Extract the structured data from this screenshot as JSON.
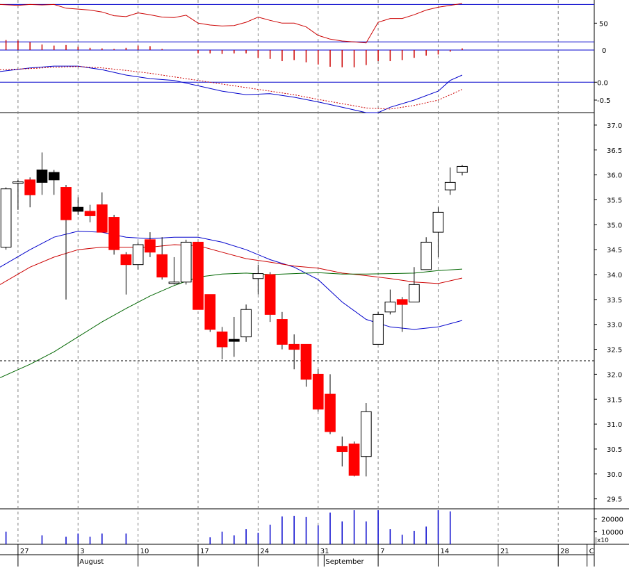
{
  "chart_data": {
    "type": "candlestick",
    "colors": {
      "up_body": "#ffffff",
      "down_body": "#ff0000",
      "doji_body": "#000000",
      "wick": "#000000",
      "ma_fast": "#0000cc",
      "ma_mid": "#cc0000",
      "ma_slow": "#006600",
      "rsi_line": "#cc0000",
      "macd_line": "#0000cc",
      "signal_line": "#cc0000",
      "hist_up": "#cc0000",
      "hist_down": "#cc0000",
      "volume": "#0000cc",
      "band_line": "#0000cc",
      "grid": "#808080"
    },
    "x_axis": {
      "day_labels": [
        {
          "label": "27",
          "day": 1
        },
        {
          "label": "3",
          "day": 6
        },
        {
          "label": "10",
          "day": 11
        },
        {
          "label": "17",
          "day": 16
        },
        {
          "label": "24",
          "day": 21
        },
        {
          "label": "31",
          "day": 26
        },
        {
          "label": "7",
          "day": 31
        },
        {
          "label": "14",
          "day": 36
        },
        {
          "label": "21",
          "day": 41
        },
        {
          "label": "28",
          "day": 46
        },
        {
          "label": "C",
          "day": 48.4
        }
      ],
      "month_labels": [
        {
          "label": "August",
          "day": 6
        },
        {
          "label": "September",
          "day": 26.5
        }
      ],
      "day_range": [
        -0.5,
        49
      ]
    },
    "price_panel": {
      "ylim": [
        29.3,
        37.25
      ],
      "ticks": [
        29.5,
        30.0,
        30.5,
        31.0,
        31.5,
        32.0,
        32.5,
        33.0,
        33.5,
        34.0,
        34.5,
        35.0,
        35.5,
        36.0,
        36.5,
        37.0
      ],
      "tick_labels": [
        "29.5",
        "30.0",
        "30.5",
        "31.0",
        "31.5",
        "32.0",
        "32.5",
        "33.0",
        "33.5",
        "34.0",
        "34.5",
        "35.0",
        "35.5",
        "36.0",
        "36.5",
        "37.0"
      ],
      "reference_level": 32.27,
      "candles": [
        {
          "day": 0,
          "o": 34.55,
          "h": 35.75,
          "l": 34.5,
          "c": 35.72
        },
        {
          "day": 1,
          "o": 35.85,
          "h": 35.9,
          "l": 35.3,
          "c": 35.86
        },
        {
          "day": 2,
          "o": 35.9,
          "h": 35.95,
          "l": 35.35,
          "c": 35.6
        },
        {
          "day": 3,
          "o": 35.85,
          "h": 36.45,
          "l": 35.6,
          "c": 36.1
        },
        {
          "day": 4,
          "o": 36.05,
          "h": 36.1,
          "l": 35.6,
          "c": 35.9
        },
        {
          "day": 5,
          "o": 35.75,
          "h": 35.8,
          "l": 33.5,
          "c": 35.1
        },
        {
          "day": 6,
          "o": 35.35,
          "h": 35.55,
          "l": 35.2,
          "c": 35.27
        },
        {
          "day": 7,
          "o": 35.27,
          "h": 35.4,
          "l": 35.05,
          "c": 35.18
        },
        {
          "day": 8,
          "o": 35.4,
          "h": 35.65,
          "l": 34.85,
          "c": 34.85
        },
        {
          "day": 9,
          "o": 35.15,
          "h": 35.2,
          "l": 34.4,
          "c": 34.5
        },
        {
          "day": 10,
          "o": 34.4,
          "h": 34.45,
          "l": 33.6,
          "c": 34.2
        },
        {
          "day": 11,
          "o": 34.2,
          "h": 34.65,
          "l": 34.1,
          "c": 34.6
        },
        {
          "day": 12,
          "o": 34.7,
          "h": 34.85,
          "l": 34.35,
          "c": 34.45
        },
        {
          "day": 13,
          "o": 34.4,
          "h": 34.75,
          "l": 33.9,
          "c": 33.95
        },
        {
          "day": 14,
          "o": 33.85,
          "h": 34.35,
          "l": 33.8,
          "c": 33.85
        },
        {
          "day": 15,
          "o": 33.85,
          "h": 34.7,
          "l": 33.8,
          "c": 34.65
        },
        {
          "day": 16,
          "o": 34.65,
          "h": 34.65,
          "l": 33.3,
          "c": 33.3
        },
        {
          "day": 17,
          "o": 33.6,
          "h": 33.6,
          "l": 32.85,
          "c": 32.9
        },
        {
          "day": 18,
          "o": 32.85,
          "h": 32.95,
          "l": 32.3,
          "c": 32.55
        },
        {
          "day": 19,
          "o": 32.7,
          "h": 33.15,
          "l": 32.35,
          "c": 32.66
        },
        {
          "day": 20,
          "o": 32.75,
          "h": 33.4,
          "l": 32.65,
          "c": 33.3
        },
        {
          "day": 21,
          "o": 33.92,
          "h": 34.2,
          "l": 33.6,
          "c": 34.02
        },
        {
          "day": 22,
          "o": 34.0,
          "h": 34.05,
          "l": 33.05,
          "c": 33.2
        },
        {
          "day": 23,
          "o": 33.1,
          "h": 33.25,
          "l": 32.5,
          "c": 32.6
        },
        {
          "day": 24,
          "o": 32.6,
          "h": 32.8,
          "l": 32.1,
          "c": 32.5
        },
        {
          "day": 25,
          "o": 32.6,
          "h": 32.6,
          "l": 31.75,
          "c": 31.9
        },
        {
          "day": 26,
          "o": 32.0,
          "h": 32.1,
          "l": 31.25,
          "c": 31.3
        },
        {
          "day": 27,
          "o": 31.6,
          "h": 32.0,
          "l": 30.8,
          "c": 30.85
        },
        {
          "day": 28,
          "o": 30.55,
          "h": 30.75,
          "l": 30.15,
          "c": 30.45
        },
        {
          "day": 29,
          "o": 30.6,
          "h": 30.65,
          "l": 29.95,
          "c": 29.97
        },
        {
          "day": 30,
          "o": 30.35,
          "h": 31.42,
          "l": 29.95,
          "c": 31.25
        },
        {
          "day": 31,
          "o": 32.6,
          "h": 33.25,
          "l": 32.6,
          "c": 33.2
        },
        {
          "day": 32,
          "o": 33.25,
          "h": 33.7,
          "l": 33.2,
          "c": 33.45
        },
        {
          "day": 33,
          "o": 33.5,
          "h": 33.55,
          "l": 32.85,
          "c": 33.4
        },
        {
          "day": 34,
          "o": 33.45,
          "h": 34.15,
          "l": 33.45,
          "c": 33.8
        },
        {
          "day": 35,
          "o": 34.1,
          "h": 34.75,
          "l": 34.1,
          "c": 34.65
        },
        {
          "day": 36,
          "o": 34.85,
          "h": 35.35,
          "l": 34.35,
          "c": 35.25
        },
        {
          "day": 37,
          "o": 35.7,
          "h": 36.15,
          "l": 35.6,
          "c": 35.85
        },
        {
          "day": 38,
          "o": 36.05,
          "h": 36.2,
          "l": 35.99,
          "c": 36.17
        }
      ],
      "moving_averages": [
        {
          "id": "ma_fast",
          "color_key": "ma_fast",
          "points": [
            [
              -0.5,
              34.15
            ],
            [
              2,
              34.5
            ],
            [
              4,
              34.75
            ],
            [
              6,
              34.87
            ],
            [
              8,
              34.85
            ],
            [
              10,
              34.75
            ],
            [
              12,
              34.72
            ],
            [
              14,
              34.75
            ],
            [
              16,
              34.75
            ],
            [
              18,
              34.65
            ],
            [
              20,
              34.5
            ],
            [
              22,
              34.3
            ],
            [
              24,
              34.15
            ],
            [
              26,
              33.9
            ],
            [
              28,
              33.45
            ],
            [
              30,
              33.1
            ],
            [
              32,
              32.95
            ],
            [
              34,
              32.9
            ],
            [
              36,
              32.95
            ],
            [
              38,
              33.08
            ]
          ]
        },
        {
          "id": "ma_mid",
          "color_key": "ma_mid",
          "points": [
            [
              -0.5,
              33.8
            ],
            [
              2,
              34.15
            ],
            [
              4,
              34.35
            ],
            [
              6,
              34.5
            ],
            [
              8,
              34.55
            ],
            [
              10,
              34.55
            ],
            [
              12,
              34.55
            ],
            [
              14,
              34.6
            ],
            [
              16,
              34.58
            ],
            [
              18,
              34.45
            ],
            [
              20,
              34.32
            ],
            [
              22,
              34.25
            ],
            [
              24,
              34.17
            ],
            [
              26,
              34.13
            ],
            [
              28,
              34.03
            ],
            [
              30,
              33.98
            ],
            [
              32,
              33.92
            ],
            [
              34,
              33.85
            ],
            [
              36,
              33.82
            ],
            [
              38,
              33.93
            ]
          ]
        },
        {
          "id": "ma_slow",
          "color_key": "ma_slow",
          "points": [
            [
              -0.5,
              31.93
            ],
            [
              2,
              32.2
            ],
            [
              4,
              32.45
            ],
            [
              6,
              32.75
            ],
            [
              8,
              33.05
            ],
            [
              10,
              33.32
            ],
            [
              12,
              33.57
            ],
            [
              14,
              33.78
            ],
            [
              16,
              33.95
            ],
            [
              18,
              34.01
            ],
            [
              20,
              34.03
            ],
            [
              22,
              34.0
            ],
            [
              24,
              34.02
            ],
            [
              26,
              34.04
            ],
            [
              28,
              34.01
            ],
            [
              30,
              34.01
            ],
            [
              32,
              34.02
            ],
            [
              34,
              34.03
            ],
            [
              36,
              34.08
            ],
            [
              38,
              34.11
            ]
          ]
        }
      ]
    },
    "rsi_panel": {
      "ylim": [
        28,
        74
      ],
      "tick_labels": [
        "50"
      ],
      "ticks": [
        50
      ],
      "band_values": [
        70,
        30
      ],
      "points": [
        [
          -0.5,
          70
        ],
        [
          1,
          69
        ],
        [
          2,
          70
        ],
        [
          3,
          69.5
        ],
        [
          4,
          70
        ],
        [
          5,
          66
        ],
        [
          6,
          65
        ],
        [
          7,
          64
        ],
        [
          8,
          62
        ],
        [
          9,
          58
        ],
        [
          10,
          57
        ],
        [
          11,
          61
        ],
        [
          12,
          59
        ],
        [
          13,
          56.5
        ],
        [
          14,
          56
        ],
        [
          15,
          58.5
        ],
        [
          16,
          50
        ],
        [
          17,
          48
        ],
        [
          18,
          47
        ],
        [
          19,
          47.5
        ],
        [
          20,
          51
        ],
        [
          21,
          56.5
        ],
        [
          22,
          53
        ],
        [
          23,
          50
        ],
        [
          24,
          50
        ],
        [
          25,
          46
        ],
        [
          26,
          37
        ],
        [
          27,
          33
        ],
        [
          28,
          31
        ],
        [
          29,
          30
        ],
        [
          30,
          29
        ],
        [
          31,
          51
        ],
        [
          32,
          55
        ],
        [
          33,
          55
        ],
        [
          34,
          59
        ],
        [
          35,
          64
        ],
        [
          36,
          67
        ],
        [
          37,
          69
        ],
        [
          38,
          71
        ]
      ]
    },
    "hist_panel": {
      "tick_labels": [
        "0"
      ],
      "values": [
        [
          0,
          0.9
        ],
        [
          1,
          0.85
        ],
        [
          2,
          0.7
        ],
        [
          3,
          0.5
        ],
        [
          4,
          0.4
        ],
        [
          5,
          0.45
        ],
        [
          6,
          0.3
        ],
        [
          7,
          0.2
        ],
        [
          8,
          0.15
        ],
        [
          9,
          0.1
        ],
        [
          10,
          0.2
        ],
        [
          11,
          0.4
        ],
        [
          12,
          0.35
        ],
        [
          13,
          0.1
        ],
        [
          16,
          -0.3
        ],
        [
          17,
          -0.3
        ],
        [
          18,
          -0.35
        ],
        [
          19,
          -0.3
        ],
        [
          20,
          -0.3
        ],
        [
          21,
          -0.7
        ],
        [
          22,
          -0.8
        ],
        [
          23,
          -1.0
        ],
        [
          24,
          -0.9
        ],
        [
          25,
          -1.1
        ],
        [
          26,
          -1.3
        ],
        [
          27,
          -1.5
        ],
        [
          28,
          -1.55
        ],
        [
          29,
          -1.55
        ],
        [
          30,
          -1.35
        ],
        [
          31,
          -1.0
        ],
        [
          32,
          -1.0
        ],
        [
          33,
          -0.9
        ],
        [
          34,
          -0.7
        ],
        [
          35,
          -0.5
        ],
        [
          36,
          -0.4
        ],
        [
          37,
          -0.15
        ],
        [
          38,
          0.15
        ]
      ]
    },
    "macd_panel": {
      "ylim": [
        -0.85,
        0.55
      ],
      "ticks": [
        0.0,
        -0.5
      ],
      "tick_labels": [
        "0.0",
        "-0.5"
      ],
      "macd_points": [
        [
          -0.5,
          0.3
        ],
        [
          2,
          0.4
        ],
        [
          4,
          0.45
        ],
        [
          6,
          0.45
        ],
        [
          8,
          0.35
        ],
        [
          10,
          0.2
        ],
        [
          12,
          0.1
        ],
        [
          14,
          0.05
        ],
        [
          16,
          -0.1
        ],
        [
          18,
          -0.25
        ],
        [
          20,
          -0.35
        ],
        [
          22,
          -0.32
        ],
        [
          24,
          -0.42
        ],
        [
          26,
          -0.55
        ],
        [
          28,
          -0.7
        ],
        [
          30,
          -0.85
        ],
        [
          31,
          -0.85
        ],
        [
          32,
          -0.7
        ],
        [
          34,
          -0.5
        ],
        [
          36,
          -0.25
        ],
        [
          37,
          0.05
        ],
        [
          38,
          0.2
        ]
      ],
      "signal_points": [
        [
          -0.5,
          0.35
        ],
        [
          2,
          0.38
        ],
        [
          4,
          0.42
        ],
        [
          6,
          0.44
        ],
        [
          8,
          0.4
        ],
        [
          10,
          0.33
        ],
        [
          12,
          0.25
        ],
        [
          14,
          0.15
        ],
        [
          16,
          0.05
        ],
        [
          18,
          -0.05
        ],
        [
          20,
          -0.15
        ],
        [
          22,
          -0.25
        ],
        [
          24,
          -0.35
        ],
        [
          26,
          -0.48
        ],
        [
          28,
          -0.6
        ],
        [
          30,
          -0.72
        ],
        [
          32,
          -0.75
        ],
        [
          34,
          -0.65
        ],
        [
          36,
          -0.5
        ],
        [
          38,
          -0.2
        ]
      ]
    },
    "volume_panel": {
      "ticks": [
        20000,
        10000
      ],
      "tick_labels": [
        "20000",
        "10000"
      ],
      "unit_label": "|x10",
      "ylim": [
        0,
        28000
      ],
      "values": [
        [
          0,
          10000
        ],
        [
          3,
          7000
        ],
        [
          5,
          6000
        ],
        [
          6,
          8500
        ],
        [
          7,
          6000
        ],
        [
          8,
          8500
        ],
        [
          10,
          8500
        ],
        [
          17,
          5500
        ],
        [
          18,
          10000
        ],
        [
          19,
          7000
        ],
        [
          20,
          12000
        ],
        [
          21,
          9000
        ],
        [
          22,
          15500
        ],
        [
          23,
          22000
        ],
        [
          24,
          22500
        ],
        [
          25,
          21500
        ],
        [
          26,
          15000
        ],
        [
          27,
          25000
        ],
        [
          28,
          18000
        ],
        [
          29,
          31000
        ],
        [
          30,
          18000
        ],
        [
          31,
          28000
        ],
        [
          32,
          12000
        ],
        [
          33,
          7500
        ],
        [
          34,
          10500
        ],
        [
          35,
          14000
        ],
        [
          36,
          33000
        ],
        [
          37,
          26000
        ]
      ]
    }
  }
}
